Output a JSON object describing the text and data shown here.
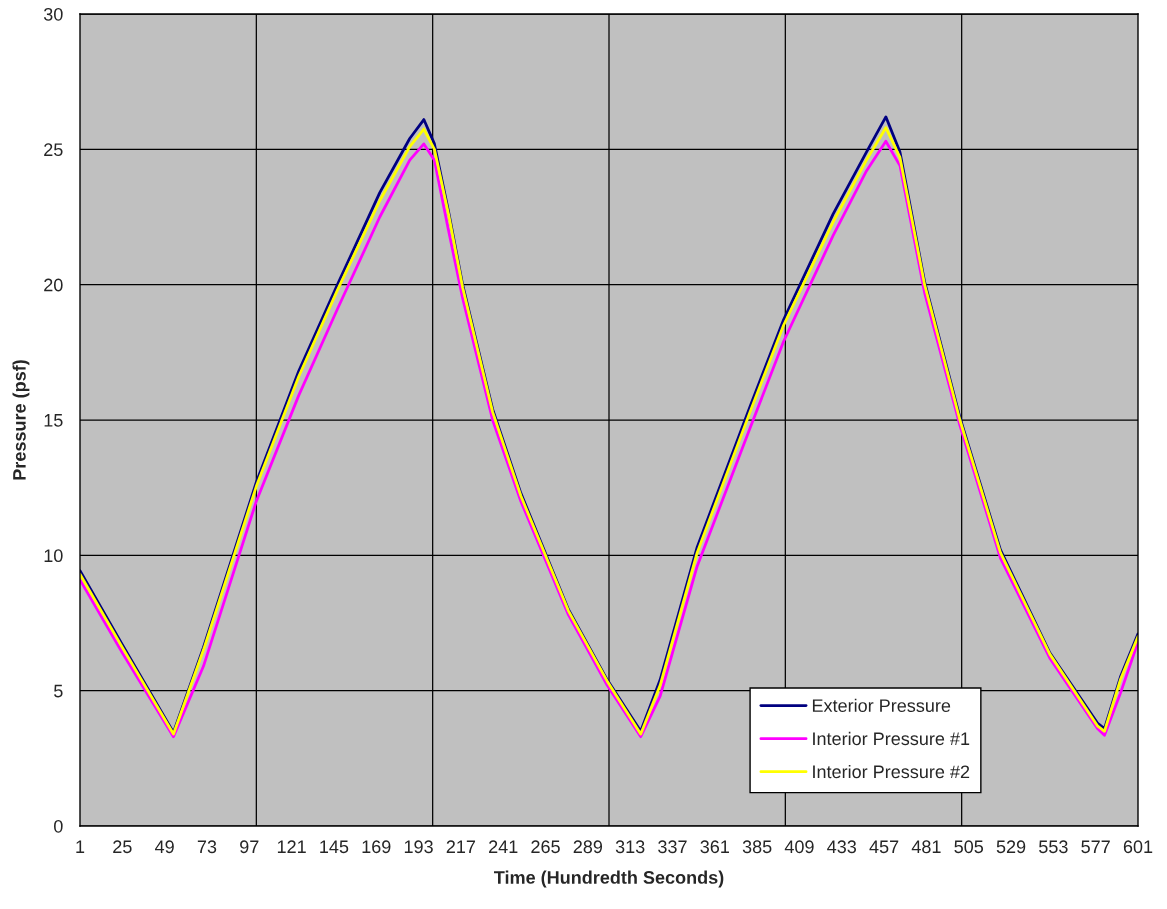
{
  "chart_data": {
    "type": "line",
    "xlabel": "Time (Hundredth Seconds)",
    "ylabel": "Pressure (psf)",
    "x": [
      1,
      25,
      54,
      71,
      101,
      125,
      147,
      171,
      188,
      196,
      202,
      210,
      218,
      235,
      251,
      278,
      300,
      319,
      330,
      351,
      381,
      400,
      428,
      447,
      458,
      466,
      480,
      500,
      523,
      551,
      578,
      582,
      591,
      601
    ],
    "xlim": [
      1,
      601
    ],
    "xticks": [
      1,
      25,
      49,
      73,
      97,
      {
        "value": 101,
        "label": null
      },
      121,
      145,
      169,
      193,
      {
        "value": 201,
        "label": null
      },
      217,
      241,
      265,
      289,
      {
        "value": 301,
        "label": null
      },
      313,
      337,
      361,
      385,
      {
        "value": 401,
        "label": null
      },
      409,
      433,
      457,
      481,
      {
        "value": 501,
        "label": null
      },
      505,
      529,
      553,
      577,
      601
    ],
    "ylim": [
      0,
      30
    ],
    "yticks": [
      0,
      5,
      10,
      15,
      20,
      25,
      30
    ],
    "grid": true,
    "legend": "bottom right",
    "line_style": "solid",
    "marker": "none",
    "series": [
      {
        "name": "Exterior Pressure",
        "color": "#000080",
        "values": [
          9.43,
          6.7,
          3.46,
          6.6,
          12.7,
          16.8,
          20.0,
          23.4,
          25.4,
          26.1,
          25.2,
          22.7,
          20.0,
          15.4,
          12.3,
          8.0,
          5.4,
          3.5,
          5.4,
          10.3,
          15.5,
          18.7,
          22.6,
          24.9,
          26.2,
          24.9,
          20.1,
          15.1,
          10.2,
          6.4,
          3.8,
          3.6,
          5.5,
          7.1
        ]
      },
      {
        "name": "Interior Pressure #1",
        "color": "#ff00ff",
        "values": [
          9.1,
          6.4,
          3.3,
          5.9,
          12.0,
          15.9,
          19.1,
          22.5,
          24.6,
          25.2,
          24.6,
          22.0,
          19.5,
          15.0,
          12.0,
          7.8,
          5.2,
          3.3,
          4.8,
          9.6,
          14.7,
          17.9,
          21.8,
          24.2,
          25.3,
          24.4,
          19.7,
          14.8,
          9.9,
          6.2,
          3.6,
          3.35,
          4.9,
          6.8
        ]
      },
      {
        "name": "Interior Pressure #2",
        "color": "#ffff00",
        "values": [
          9.3,
          6.6,
          3.4,
          6.5,
          12.55,
          16.6,
          19.8,
          23.1,
          25.1,
          25.75,
          25.0,
          22.6,
          19.9,
          15.3,
          12.2,
          7.95,
          5.35,
          3.4,
          5.2,
          10.1,
          15.3,
          18.5,
          22.3,
          24.6,
          25.8,
          24.7,
          20.0,
          15.0,
          10.1,
          6.35,
          3.7,
          3.5,
          5.4,
          7.0
        ]
      }
    ]
  }
}
